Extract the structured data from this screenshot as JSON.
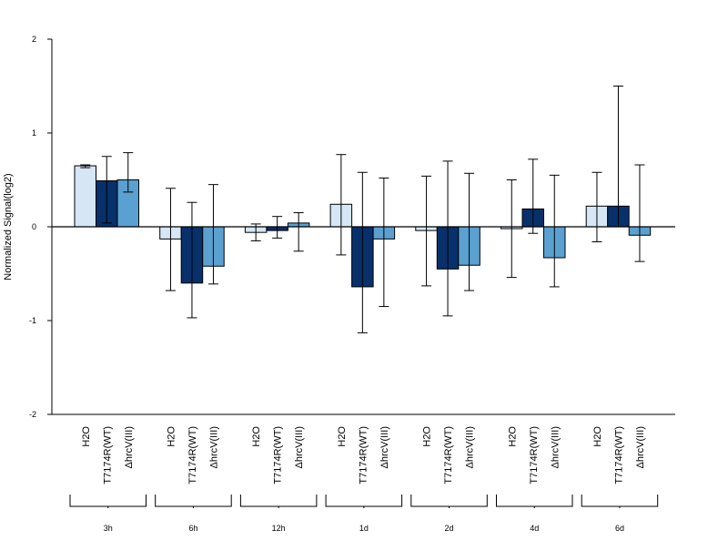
{
  "chart_data": {
    "type": "bar",
    "ylabel": "Normalized Signal(log2)",
    "ylim": [
      -2,
      2
    ],
    "yticks": [
      "-2",
      "-1",
      "0",
      "1",
      "2"
    ],
    "series_labels": [
      "H2O",
      "T7174R(WT)",
      "ΔhrcV(III)"
    ],
    "colors": [
      "#d6e6f5",
      "#08306b",
      "#5aa0d0"
    ],
    "groups": [
      {
        "name": "3h",
        "values": [
          0.65,
          0.49,
          0.5
        ],
        "lower": [
          0.63,
          0.04,
          0.37
        ],
        "upper": [
          0.66,
          0.75,
          0.79
        ]
      },
      {
        "name": "6h",
        "values": [
          -0.13,
          -0.6,
          -0.42
        ],
        "lower": [
          -0.68,
          -0.97,
          -0.61
        ],
        "upper": [
          0.41,
          0.26,
          0.45
        ]
      },
      {
        "name": "12h",
        "values": [
          -0.06,
          -0.04,
          0.04
        ],
        "lower": [
          -0.15,
          -0.12,
          -0.26
        ],
        "upper": [
          0.03,
          0.11,
          0.15
        ]
      },
      {
        "name": "1d",
        "values": [
          0.24,
          -0.64,
          -0.13
        ],
        "lower": [
          -0.3,
          -1.13,
          -0.85
        ],
        "upper": [
          0.77,
          0.58,
          0.52
        ]
      },
      {
        "name": "2d",
        "values": [
          -0.04,
          -0.45,
          -0.41
        ],
        "lower": [
          -0.63,
          -0.95,
          -0.68
        ],
        "upper": [
          0.54,
          0.7,
          0.57
        ]
      },
      {
        "name": "4d",
        "values": [
          -0.02,
          0.19,
          -0.33
        ],
        "lower": [
          -0.54,
          -0.07,
          -0.64
        ],
        "upper": [
          0.5,
          0.72,
          0.55
        ]
      },
      {
        "name": "6d",
        "values": [
          0.22,
          0.22,
          -0.09
        ],
        "lower": [
          -0.16,
          0.0,
          -0.37
        ],
        "upper": [
          0.58,
          1.5,
          0.66
        ]
      }
    ]
  }
}
